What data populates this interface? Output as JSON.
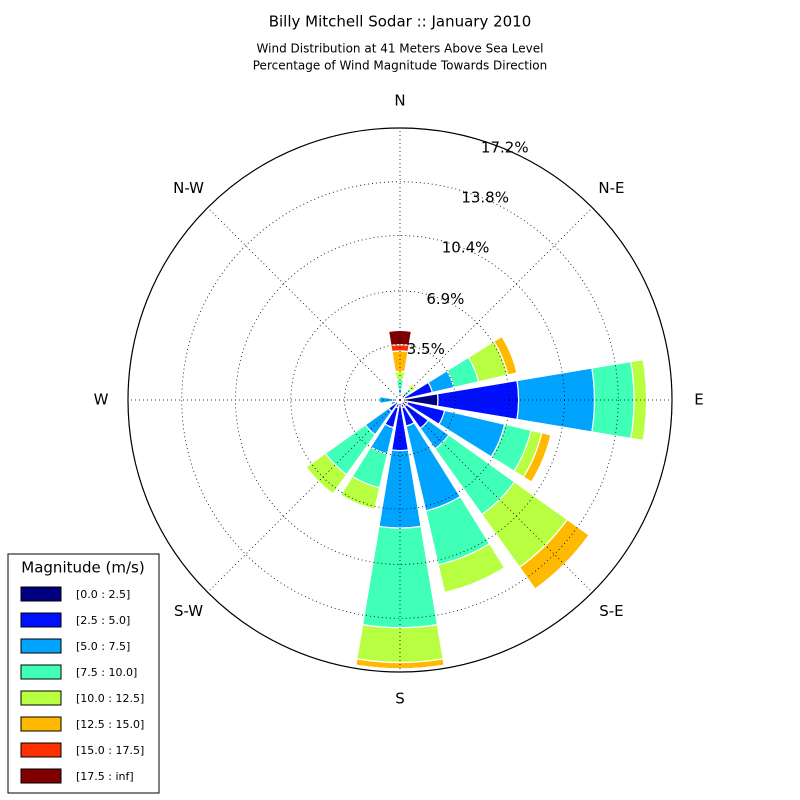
{
  "chart_data": {
    "type": "windrose",
    "title": "Billy Mitchell Sodar :: January 2010",
    "subtitle": [
      "Wind Distribution at 41 Meters Above Sea Level",
      "Percentage of Wind Magnitude Towards Direction"
    ],
    "categories": [
      "N",
      null,
      "N-E",
      null,
      "E",
      null,
      "S-E",
      null,
      "S",
      null,
      "S-W",
      null,
      "W",
      null,
      "N-W",
      null
    ],
    "rlim": [
      0,
      17.2
    ],
    "rticks": [
      {
        "value": 3.5,
        "label": "3.5%"
      },
      {
        "value": 6.9,
        "label": "6.9%"
      },
      {
        "value": 10.4,
        "label": "10.4%"
      },
      {
        "value": 13.8,
        "label": "13.8%"
      },
      {
        "value": 17.2,
        "label": "17.2%"
      }
    ],
    "grid": true,
    "legend_title": "Magnitude (m/s)",
    "legend_position": "lower left",
    "series": [
      {
        "name": "[0.0 : 2.5]",
        "color": "#000080",
        "values": [
          0.2,
          0.1,
          0.2,
          0.3,
          2.4,
          0.5,
          0.5,
          0.5,
          0.3,
          0.5,
          0.3,
          0.1,
          0.2,
          0.1,
          0.1,
          0.1
        ]
      },
      {
        "name": "[2.5 : 5.0]",
        "color": "#0010ff",
        "values": [
          0.2,
          0.1,
          0.3,
          1.8,
          5.1,
          2.4,
          1.7,
          1.2,
          2.9,
          1.3,
          0.6,
          0.2,
          0.3,
          0.1,
          0.1,
          0.1
        ]
      },
      {
        "name": "[5.0 : 7.5]",
        "color": "#00a4ff",
        "values": [
          0.3,
          0.1,
          0.2,
          1.4,
          4.8,
          3.9,
          1.6,
          5.5,
          4.9,
          1.7,
          1.8,
          0.3,
          0.8,
          0.1,
          0.1,
          0.1
        ]
      },
      {
        "name": "[7.5 : 10.0]",
        "color": "#40ffb7",
        "values": [
          0.6,
          0.1,
          0.2,
          1.6,
          2.5,
          1.7,
          5.1,
          3.5,
          6.3,
          2.2,
          3.1,
          0.1,
          0.1,
          0.1,
          0.1,
          0.1
        ]
      },
      {
        "name": "[10.0 : 12.5]",
        "color": "#b7ff40",
        "values": [
          0.5,
          0.1,
          0.3,
          1.9,
          0.8,
          0.7,
          4.1,
          1.8,
          2.2,
          1.4,
          1.5,
          0.0,
          0.0,
          0.0,
          0.0,
          0.0
        ]
      },
      {
        "name": "[12.5 : 15.0]",
        "color": "#ffb900",
        "values": [
          1.3,
          0.0,
          0.1,
          0.6,
          0.0,
          0.6,
          1.7,
          0.0,
          0.4,
          0.0,
          0.0,
          0.0,
          0.0,
          0.0,
          0.0,
          0.0
        ]
      },
      {
        "name": "[15.0 : 17.5]",
        "color": "#ff3000",
        "values": [
          0.4,
          0.0,
          0.0,
          0.0,
          0.0,
          0.0,
          0.0,
          0.0,
          0.0,
          0.0,
          0.0,
          0.0,
          0.0,
          0.0,
          0.0,
          0.0
        ]
      },
      {
        "name": "[17.5 : inf]",
        "color": "#800000",
        "values": [
          0.9,
          0.0,
          0.0,
          0.0,
          0.0,
          0.0,
          0.0,
          0.0,
          0.0,
          0.0,
          0.0,
          0.0,
          0.0,
          0.0,
          0.0,
          0.0
        ]
      }
    ]
  }
}
